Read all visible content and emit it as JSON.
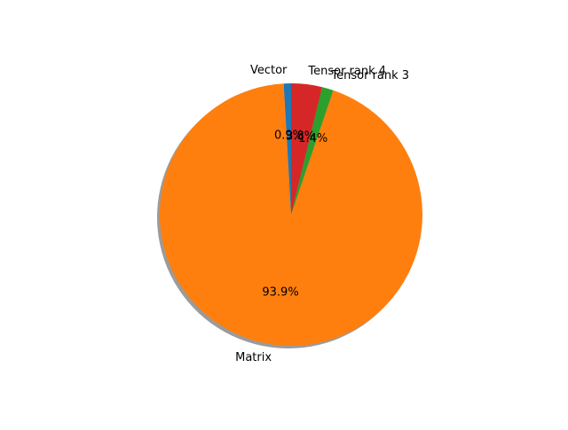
{
  "chart_data": {
    "type": "pie",
    "title": "",
    "shadow": true,
    "start_angle_deg": 90,
    "direction": "counterclockwise",
    "slices": [
      {
        "label": "Vector",
        "value": 0.9,
        "pct_label": "0.9%",
        "color": "#1f77b4"
      },
      {
        "label": "Matrix",
        "value": 93.9,
        "pct_label": "93.9%",
        "color": "#ff7f0e"
      },
      {
        "label": "Tensor rank 3",
        "value": 1.4,
        "pct_label": "1.4%",
        "color": "#2ca02c"
      },
      {
        "label": "Tensor rank 4",
        "value": 3.8,
        "pct_label": "3.8%",
        "color": "#d62728"
      }
    ]
  }
}
